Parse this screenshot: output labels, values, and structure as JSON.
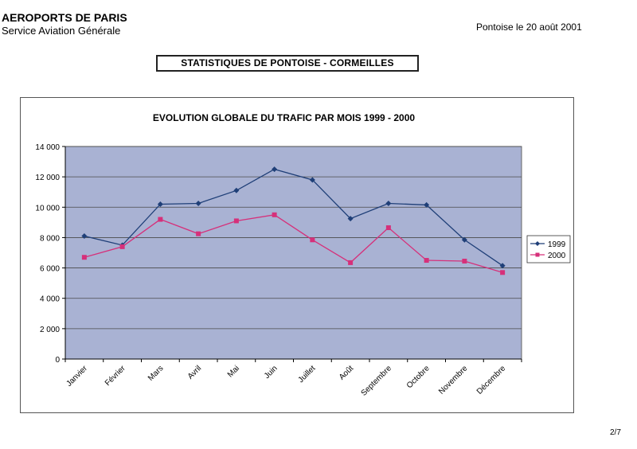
{
  "header": {
    "org_name": "AEROPORTS DE PARIS",
    "org_sub": "Service Aviation Générale",
    "date": "Pontoise le  20 août 2001"
  },
  "doc_title": "STATISTIQUES  DE  PONTOISE - CORMEILLES",
  "page_number": "2/7",
  "colors": {
    "plot_bg": "#a9b2d3",
    "grid": "#4a4a4a",
    "series_1999": "#1f3f78",
    "series_2000": "#d6307a"
  },
  "chart_data": {
    "type": "line",
    "title": "EVOLUTION GLOBALE DU TRAFIC PAR MOIS 1999 - 2000",
    "xlabel": "",
    "ylabel": "",
    "categories": [
      "Janvier",
      "Février",
      "Mars",
      "Avril",
      "Mai",
      "Juin",
      "Juillet",
      "Août",
      "Septembre",
      "Octobre",
      "Novembre",
      "Décembre"
    ],
    "ylim": [
      0,
      14000
    ],
    "yticks": [
      0,
      2000,
      4000,
      6000,
      8000,
      10000,
      12000,
      14000
    ],
    "ytick_labels": [
      "0",
      "2 000",
      "4 000",
      "6 000",
      "8 000",
      "10 000",
      "12 000",
      "14 000"
    ],
    "grid": true,
    "legend_position": "right",
    "series": [
      {
        "name": "1999",
        "values": [
          8100,
          7500,
          10200,
          10250,
          11100,
          12500,
          11800,
          9250,
          10250,
          10150,
          7850,
          6150
        ],
        "marker": "diamond"
      },
      {
        "name": "2000",
        "values": [
          6700,
          7400,
          9200,
          8250,
          9100,
          9500,
          7850,
          6350,
          8650,
          6500,
          6450,
          5700
        ],
        "marker": "square"
      }
    ]
  }
}
